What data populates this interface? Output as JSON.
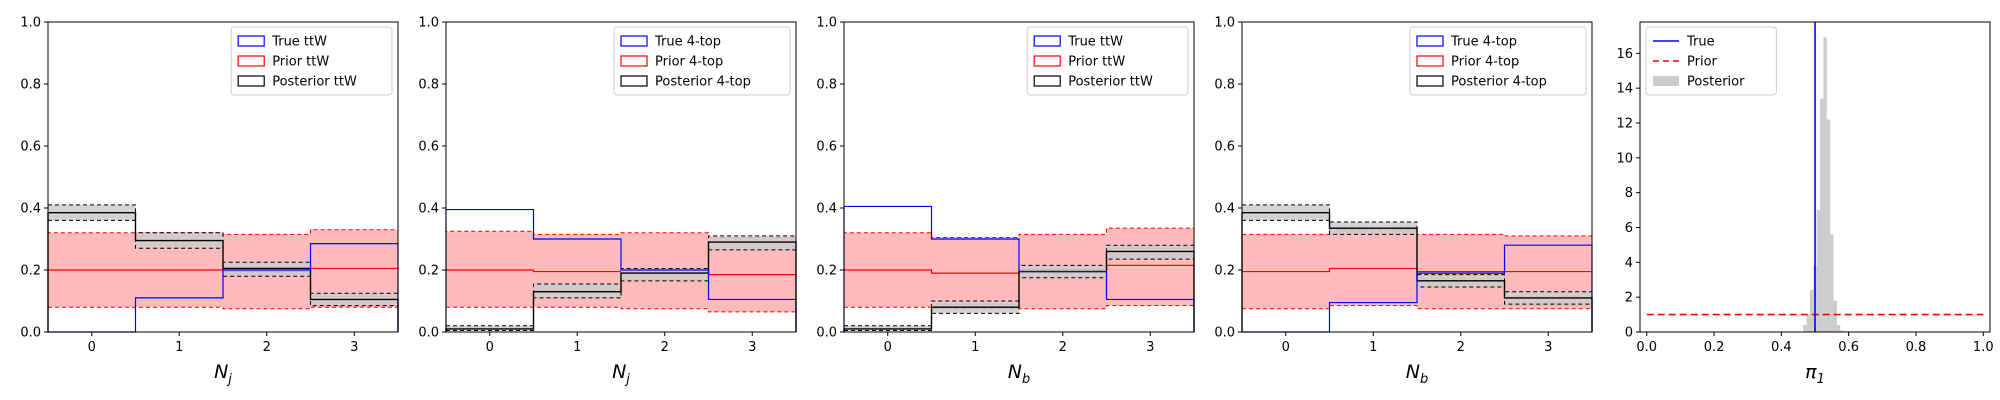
{
  "figure": {
    "colors": {
      "true": "#0000ff",
      "prior": "#ff0000",
      "prior_fill": "#ffbbbb",
      "posterior": "#000000",
      "posterior_fill": "#cccccc"
    }
  },
  "chart_data": [
    {
      "type": "bar",
      "subtype": "step-histogram",
      "xlabel": "N_j",
      "categories": [
        "0",
        "1",
        "2",
        "3"
      ],
      "xlim": [
        -0.5,
        3.5
      ],
      "ylim": [
        0,
        1
      ],
      "yticks": [
        "0.0",
        "0.2",
        "0.4",
        "0.6",
        "0.8",
        "1.0"
      ],
      "legend_position": "top-right",
      "legend": [
        "True ttW",
        "Prior ttW",
        "Posterior ttW"
      ],
      "series": [
        {
          "name": "True ttW",
          "values": [
            0.0,
            0.11,
            0.2,
            0.285
          ]
        },
        {
          "name": "Prior ttW",
          "values": [
            0.2,
            0.2,
            0.195,
            0.205
          ],
          "lower": [
            0.08,
            0.08,
            0.075,
            0.08
          ],
          "upper": [
            0.32,
            0.32,
            0.315,
            0.33
          ]
        },
        {
          "name": "Posterior ttW",
          "values": [
            0.385,
            0.295,
            0.205,
            0.105
          ],
          "lower": [
            0.36,
            0.27,
            0.18,
            0.085
          ],
          "upper": [
            0.41,
            0.32,
            0.225,
            0.125
          ]
        }
      ]
    },
    {
      "type": "bar",
      "subtype": "step-histogram",
      "xlabel": "N_j",
      "categories": [
        "0",
        "1",
        "2",
        "3"
      ],
      "xlim": [
        -0.5,
        3.5
      ],
      "ylim": [
        0,
        1
      ],
      "yticks": [
        "0.0",
        "0.2",
        "0.4",
        "0.6",
        "0.8",
        "1.0"
      ],
      "legend_position": "top-right",
      "legend": [
        "True 4-top",
        "Prior 4-top",
        "Posterior 4-top"
      ],
      "series": [
        {
          "name": "True 4-top",
          "values": [
            0.395,
            0.3,
            0.2,
            0.105
          ]
        },
        {
          "name": "Prior 4-top",
          "values": [
            0.2,
            0.195,
            0.2,
            0.185
          ],
          "lower": [
            0.08,
            0.08,
            0.075,
            0.065
          ],
          "upper": [
            0.325,
            0.315,
            0.32,
            0.305
          ]
        },
        {
          "name": "Posterior 4-top",
          "values": [
            0.01,
            0.13,
            0.19,
            0.29
          ],
          "lower": [
            0.005,
            0.11,
            0.165,
            0.265
          ],
          "upper": [
            0.02,
            0.155,
            0.205,
            0.31
          ]
        }
      ]
    },
    {
      "type": "bar",
      "subtype": "step-histogram",
      "xlabel": "N_b",
      "categories": [
        "0",
        "1",
        "2",
        "3"
      ],
      "xlim": [
        -0.5,
        3.5
      ],
      "ylim": [
        0,
        1
      ],
      "yticks": [
        "0.0",
        "0.2",
        "0.4",
        "0.6",
        "0.8",
        "1.0"
      ],
      "legend_position": "top-right",
      "legend": [
        "True ttW",
        "Prior ttW",
        "Posterior ttW"
      ],
      "series": [
        {
          "name": "True ttW",
          "values": [
            0.405,
            0.3,
            0.195,
            0.105
          ]
        },
        {
          "name": "Prior ttW",
          "values": [
            0.2,
            0.19,
            0.2,
            0.215
          ],
          "lower": [
            0.08,
            0.075,
            0.075,
            0.085
          ],
          "upper": [
            0.32,
            0.305,
            0.315,
            0.335
          ]
        },
        {
          "name": "Posterior ttW",
          "values": [
            0.01,
            0.08,
            0.195,
            0.26
          ],
          "lower": [
            0.005,
            0.06,
            0.175,
            0.235
          ],
          "upper": [
            0.02,
            0.1,
            0.215,
            0.28
          ]
        }
      ]
    },
    {
      "type": "bar",
      "subtype": "step-histogram",
      "xlabel": "N_b",
      "categories": [
        "0",
        "1",
        "2",
        "3"
      ],
      "xlim": [
        -0.5,
        3.5
      ],
      "ylim": [
        0,
        1
      ],
      "yticks": [
        "0.0",
        "0.2",
        "0.4",
        "0.6",
        "0.8",
        "1.0"
      ],
      "legend_position": "top-right",
      "legend": [
        "True 4-top",
        "Prior 4-top",
        "Posterior 4-top"
      ],
      "series": [
        {
          "name": "True 4-top",
          "values": [
            0.0,
            0.095,
            0.19,
            0.28
          ]
        },
        {
          "name": "Prior 4-top",
          "values": [
            0.195,
            0.205,
            0.195,
            0.195
          ],
          "lower": [
            0.075,
            0.085,
            0.075,
            0.075
          ],
          "upper": [
            0.315,
            0.33,
            0.315,
            0.31
          ]
        },
        {
          "name": "Posterior 4-top",
          "values": [
            0.385,
            0.335,
            0.165,
            0.11
          ],
          "lower": [
            0.36,
            0.315,
            0.145,
            0.09
          ],
          "upper": [
            0.41,
            0.355,
            0.185,
            0.13
          ]
        }
      ]
    },
    {
      "type": "histogram",
      "xlabel": "π_1",
      "xlim": [
        -0.02,
        1.02
      ],
      "ylim": [
        0,
        17.8
      ],
      "xticks": [
        "0.0",
        "0.2",
        "0.4",
        "0.6",
        "0.8",
        "1.0"
      ],
      "yticks": [
        "0",
        "2",
        "4",
        "6",
        "8",
        "10",
        "12",
        "14",
        "16"
      ],
      "legend_position": "top-left",
      "legend": [
        "True",
        "Prior",
        "Posterior"
      ],
      "true_value": 0.5,
      "prior_density": 1.0,
      "posterior_hist": {
        "bin_edges": [
          0.465,
          0.475,
          0.485,
          0.495,
          0.505,
          0.515,
          0.525,
          0.535,
          0.545,
          0.555,
          0.565,
          0.575,
          0.585
        ],
        "values": [
          0.4,
          1.0,
          2.4,
          3.8,
          7.0,
          13.4,
          16.9,
          12.2,
          5.6,
          1.8,
          0.4,
          0.1
        ]
      }
    }
  ]
}
